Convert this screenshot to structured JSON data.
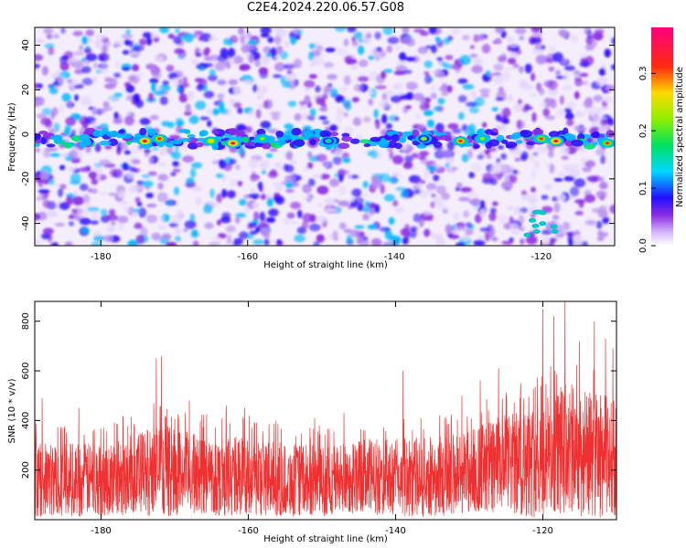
{
  "title": "C2E4.2024.220.06.57.G08",
  "colors": {
    "snr_line": "#f03030",
    "heatmap_low": "#ffffff",
    "heatmap_purple": "#8020e0",
    "heatmap_blue": "#2030ff",
    "heatmap_green": "#20e040",
    "heatmap_red": "#ff2020"
  },
  "chart_data": [
    {
      "type": "heatmap",
      "title": "C2E4.2024.220.06.57.G08",
      "xlabel": "Height of straight line (km)",
      "ylabel": "Frequency (Hz)",
      "xlim": [
        -189,
        -110
      ],
      "ylim": [
        -50,
        48
      ],
      "x_ticks": [
        -180,
        -160,
        -140,
        -120
      ],
      "y_ticks": [
        -40,
        -20,
        0,
        20,
        40
      ],
      "x_tick_labels": [
        "-180",
        "-160",
        "-140",
        "-120"
      ],
      "y_tick_labels": [
        "-40",
        "-20",
        "0",
        "20",
        "40"
      ],
      "colorbar": {
        "label": "Normalized spectral amplitude",
        "range": [
          0,
          0.38
        ],
        "ticks": [
          0.0,
          0.1,
          0.2,
          0.3
        ],
        "tick_labels": [
          "0.0",
          "0.1",
          "0.2",
          "0.3"
        ],
        "colormap": [
          "white",
          "purple",
          "blue",
          "cyan",
          "green",
          "yellow",
          "red",
          "magenta"
        ]
      },
      "band": {
        "center_frequency_hz": -2,
        "hotspots": [
          {
            "x": -174,
            "y": -3,
            "value": 0.36
          },
          {
            "x": -172,
            "y": -2,
            "value": 0.33
          },
          {
            "x": -165,
            "y": -3,
            "value": 0.28
          },
          {
            "x": -162,
            "y": -4,
            "value": 0.36
          },
          {
            "x": -158,
            "y": -2,
            "value": 0.22
          },
          {
            "x": -149,
            "y": -3,
            "value": 0.18
          },
          {
            "x": -136,
            "y": -2,
            "value": 0.2
          },
          {
            "x": -131,
            "y": -3,
            "value": 0.32
          },
          {
            "x": -128,
            "y": -2,
            "value": 0.22
          },
          {
            "x": -120,
            "y": -2,
            "value": 0.3
          },
          {
            "x": -118,
            "y": -3,
            "value": 0.36
          },
          {
            "x": -111,
            "y": -4,
            "value": 0.3
          }
        ]
      }
    },
    {
      "type": "line",
      "xlabel": "Height of straight line (km)",
      "ylabel": "SNR (10 * v/v)",
      "xlim": [
        -189,
        -110
      ],
      "ylim": [
        0,
        880
      ],
      "x_ticks": [
        -180,
        -160,
        -140,
        -120
      ],
      "y_ticks": [
        200,
        400,
        600,
        800
      ],
      "x_tick_labels": [
        "-180",
        "-160",
        "-140",
        "-120"
      ],
      "y_tick_labels": [
        "200",
        "400",
        "600",
        "800"
      ],
      "series": [
        {
          "color": "#f03030",
          "envelope": [
            {
              "x": -189,
              "low": 20,
              "high": 330
            },
            {
              "x": -184,
              "low": 20,
              "high": 340
            },
            {
              "x": -180,
              "low": 20,
              "high": 330
            },
            {
              "x": -175,
              "low": 30,
              "high": 380
            },
            {
              "x": -172,
              "low": 20,
              "high": 420
            },
            {
              "x": -168,
              "low": 30,
              "high": 380
            },
            {
              "x": -164,
              "low": 20,
              "high": 360
            },
            {
              "x": -160,
              "low": 20,
              "high": 370
            },
            {
              "x": -155,
              "low": 20,
              "high": 330
            },
            {
              "x": -150,
              "low": 20,
              "high": 320
            },
            {
              "x": -145,
              "low": 30,
              "high": 350
            },
            {
              "x": -140,
              "low": 20,
              "high": 350
            },
            {
              "x": -135,
              "low": 20,
              "high": 360
            },
            {
              "x": -130,
              "low": 30,
              "high": 400
            },
            {
              "x": -126,
              "low": 30,
              "high": 450
            },
            {
              "x": -122,
              "low": 20,
              "high": 480
            },
            {
              "x": -119,
              "low": 20,
              "high": 560
            },
            {
              "x": -117,
              "low": 30,
              "high": 600
            },
            {
              "x": -114,
              "low": 20,
              "high": 560
            },
            {
              "x": -111,
              "low": 20,
              "high": 540
            },
            {
              "x": -110,
              "low": 30,
              "high": 520
            }
          ],
          "peaks": [
            {
              "x": -188,
              "y": 490
            },
            {
              "x": -183,
              "y": 450
            },
            {
              "x": -177,
              "y": 410
            },
            {
              "x": -172.5,
              "y": 650
            },
            {
              "x": -171.8,
              "y": 660
            },
            {
              "x": -168,
              "y": 480
            },
            {
              "x": -163,
              "y": 460
            },
            {
              "x": -160.5,
              "y": 450
            },
            {
              "x": -151,
              "y": 410
            },
            {
              "x": -147,
              "y": 430
            },
            {
              "x": -139,
              "y": 600
            },
            {
              "x": -134,
              "y": 420
            },
            {
              "x": -131,
              "y": 500
            },
            {
              "x": -128.5,
              "y": 560
            },
            {
              "x": -126,
              "y": 610
            },
            {
              "x": -123,
              "y": 550
            },
            {
              "x": -120,
              "y": 850
            },
            {
              "x": -118.5,
              "y": 820
            },
            {
              "x": -117,
              "y": 880
            },
            {
              "x": -115,
              "y": 720
            },
            {
              "x": -113,
              "y": 800
            },
            {
              "x": -111.5,
              "y": 730
            },
            {
              "x": -110.5,
              "y": 690
            }
          ]
        }
      ]
    }
  ]
}
